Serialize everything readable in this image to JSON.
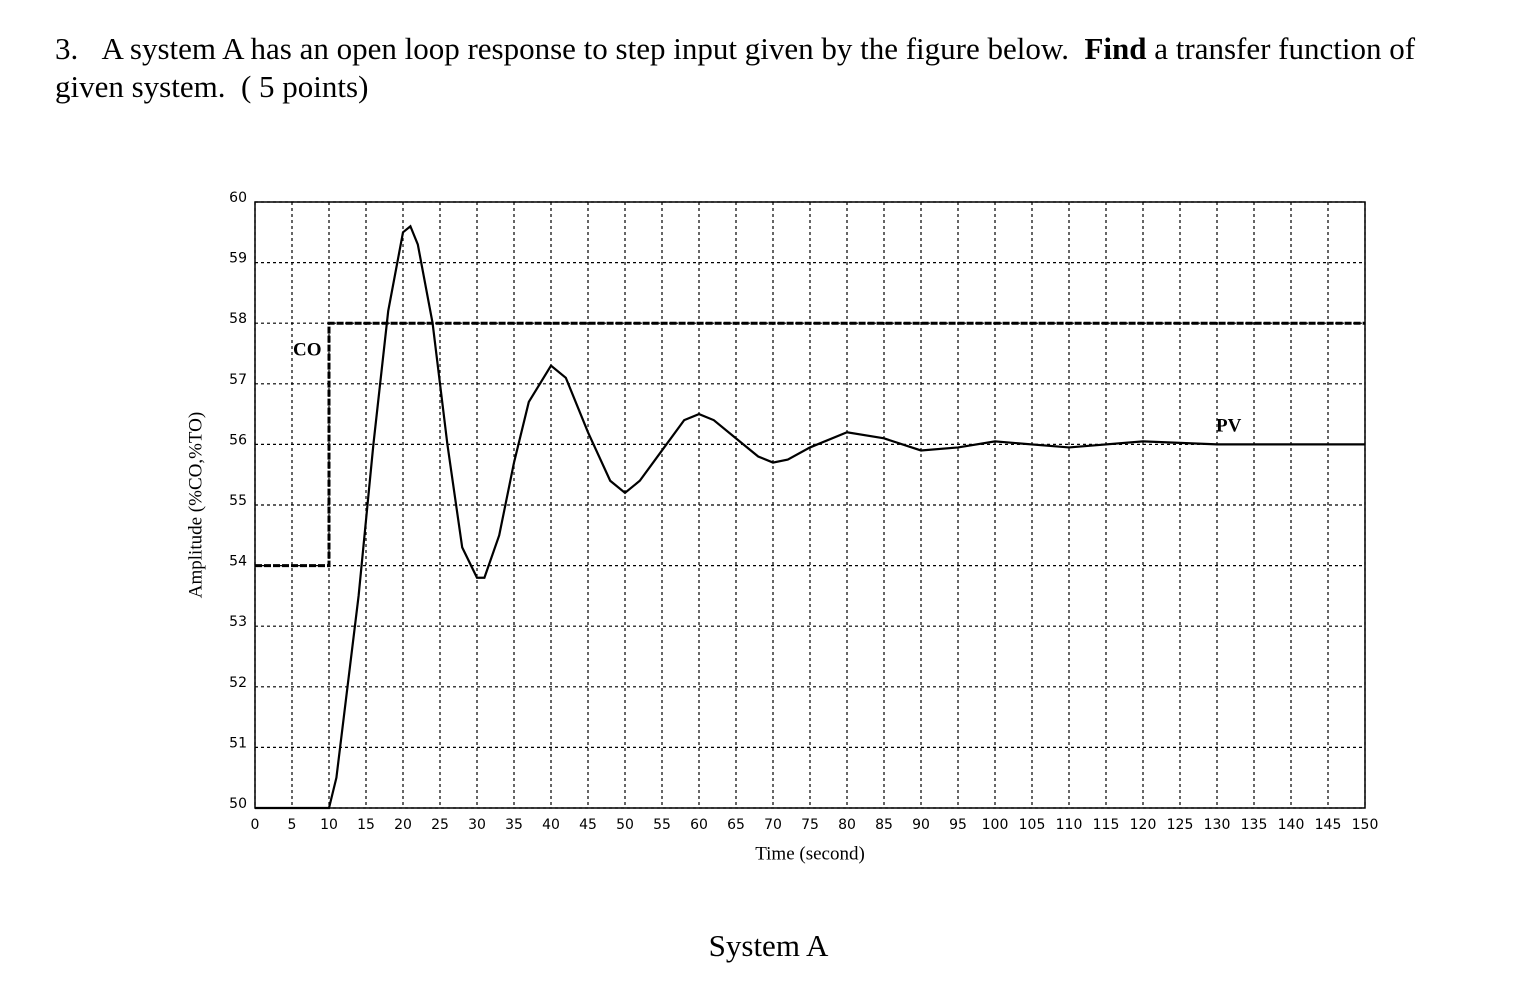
{
  "question": {
    "number": "3.",
    "text_before": "A system A has an open loop response to step input given by the figure below.",
    "bold": "Find",
    "text_after": "a transfer function of given system.  ( 5 points)"
  },
  "chart_data": {
    "type": "line",
    "xlabel": "Time (second)",
    "ylabel": "Amplitude (%CO,%TO)",
    "xlim": [
      0,
      150
    ],
    "xticks": [
      0,
      5,
      10,
      15,
      20,
      25,
      30,
      35,
      40,
      45,
      50,
      55,
      60,
      65,
      70,
      75,
      80,
      85,
      90,
      95,
      100,
      105,
      110,
      115,
      120,
      125,
      130,
      135,
      140,
      145,
      150
    ],
    "ylim": [
      50,
      60
    ],
    "yticks": [
      50,
      51,
      52,
      53,
      54,
      55,
      56,
      57,
      58,
      59,
      60
    ],
    "grid": true,
    "series": [
      {
        "name": "CO",
        "color": "#000000",
        "dashed": true,
        "x": [
          0,
          10,
          10,
          150
        ],
        "values": [
          54,
          54,
          58,
          58
        ]
      },
      {
        "name": "PV",
        "color": "#000000",
        "dashed": false,
        "x": [
          0,
          10,
          11,
          12,
          14,
          16,
          18,
          20,
          21,
          22,
          24,
          26,
          28,
          30,
          31,
          33,
          35,
          37,
          40,
          42,
          45,
          48,
          50,
          52,
          55,
          58,
          60,
          62,
          65,
          68,
          70,
          72,
          75,
          80,
          85,
          90,
          95,
          100,
          110,
          120,
          130,
          140,
          150
        ],
        "values": [
          50,
          50,
          50.5,
          51.5,
          53.5,
          56,
          58.2,
          59.5,
          59.6,
          59.3,
          58,
          56,
          54.3,
          53.8,
          53.8,
          54.5,
          55.7,
          56.7,
          57.3,
          57.1,
          56.2,
          55.4,
          55.2,
          55.4,
          55.9,
          56.4,
          56.5,
          56.4,
          56.1,
          55.8,
          55.7,
          55.75,
          55.95,
          56.2,
          56.1,
          55.9,
          55.95,
          56.05,
          55.95,
          56.05,
          56,
          56,
          56
        ]
      }
    ]
  },
  "caption": "System A"
}
